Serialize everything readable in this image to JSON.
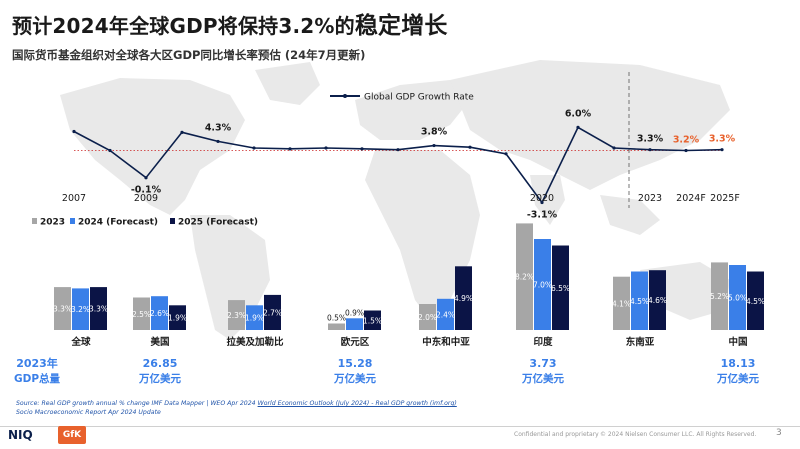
{
  "header": {
    "title_part1": "预计2024年全球GDP将保持3.2%的",
    "title_part2": "稳定增长",
    "subtitle": "国际货币基金组织对全球各大区GDP同比增长率预估 (24年7月更新)"
  },
  "chart_data": [
    {
      "type": "line",
      "legend": "Global GDP Growth Rate",
      "x_ticks": [
        "2007",
        "2009",
        "2020",
        "2023",
        "2024F",
        "2025F"
      ],
      "points": [
        {
          "x": 2007,
          "y": 5.5
        },
        {
          "x": 2008,
          "y": 3.2
        },
        {
          "x": 2009,
          "y": -0.1,
          "label": "-0.1%"
        },
        {
          "x": 2010,
          "y": 5.4
        },
        {
          "x": 2011,
          "y": 4.3,
          "label": "4.3%"
        },
        {
          "x": 2012,
          "y": 3.5
        },
        {
          "x": 2013,
          "y": 3.4
        },
        {
          "x": 2014,
          "y": 3.5
        },
        {
          "x": 2015,
          "y": 3.4
        },
        {
          "x": 2016,
          "y": 3.3
        },
        {
          "x": 2017,
          "y": 3.8,
          "label": "3.8%"
        },
        {
          "x": 2018,
          "y": 3.6
        },
        {
          "x": 2019,
          "y": 2.8
        },
        {
          "x": 2020,
          "y": -3.1,
          "label": "-3.1%"
        },
        {
          "x": 2021,
          "y": 6.0,
          "label": "6.0%"
        },
        {
          "x": 2022,
          "y": 3.5
        },
        {
          "x": 2023,
          "y": 3.3,
          "label": "3.3%"
        },
        {
          "x": 2024,
          "y": 3.2,
          "label": "3.2%",
          "forecast": true
        },
        {
          "x": 2025,
          "y": 3.3,
          "label": "3.3%",
          "forecast": true
        }
      ],
      "reference_line": 3.2,
      "colors": {
        "line": "#0b1f4b",
        "reference": "#cc2222",
        "forecast_label": "#e8612c"
      }
    },
    {
      "type": "bar",
      "series": [
        {
          "name": "2023",
          "color": "#a6a6a6"
        },
        {
          "name": "2024 (Forecast)",
          "color": "#3a7fe8"
        },
        {
          "name": "2025 (Forecast)",
          "color": "#0b1446"
        }
      ],
      "groups": [
        {
          "name": "全球",
          "values": [
            3.3,
            3.2,
            3.3
          ],
          "labels": [
            "3.3%",
            "3.2%",
            "3.3%"
          ]
        },
        {
          "name": "美国",
          "values": [
            2.5,
            2.6,
            1.9
          ],
          "labels": [
            "2.5%",
            "2.6%",
            "1.9%"
          ]
        },
        {
          "name": "拉美及加勒比",
          "values": [
            2.3,
            1.9,
            2.7
          ],
          "labels": [
            "2.3%",
            "1.9%",
            "2.7%"
          ]
        },
        {
          "name": "欧元区",
          "values": [
            0.5,
            0.9,
            1.5
          ],
          "labels": [
            "0.5%",
            "0.9%",
            "1.5%"
          ]
        },
        {
          "name": "中东和中亚",
          "values": [
            2.0,
            2.4,
            4.9
          ],
          "labels": [
            "2.0%",
            "2.4%",
            "4.9%"
          ]
        },
        {
          "name": "印度",
          "values": [
            8.2,
            7.0,
            6.5
          ],
          "labels": [
            "8.2%",
            "7.0%",
            "6.5%"
          ]
        },
        {
          "name": "东南亚",
          "values": [
            4.1,
            4.5,
            4.6
          ],
          "labels": [
            "4.1%",
            "4.5%",
            "4.6%"
          ]
        },
        {
          "name": "中国",
          "values": [
            5.2,
            5.0,
            4.5
          ],
          "labels": [
            "5.2%",
            "5.0%",
            "4.5%"
          ]
        }
      ],
      "gdp_totals": [
        {
          "value": "2023年",
          "unit": "GDP总量"
        },
        {
          "value": "26.85",
          "unit": "万亿美元"
        },
        {
          "value": "15.28",
          "unit": "万亿美元"
        },
        {
          "value": "3.73",
          "unit": "万亿美元"
        },
        {
          "value": "18.13",
          "unit": "万亿美元"
        }
      ],
      "gdp_color": "#3a7fe8"
    }
  ],
  "source": {
    "line1_a": "Source: Real GDP growth annual % change IMF Data Mapper | WEO Apr 2024 ",
    "line1_link1": "World Economic Outlook (July 2024) - Real GDP growth (imf.org)",
    "line2": "Socio Macroeconomic Report Apr 2024 Update"
  },
  "footer": {
    "logo": "NIQ",
    "partner": "GfK",
    "confidential": "Confidential and proprietary",
    "copyright": "© 2024 Nielsen Consumer LLC. All Rights Reserved.",
    "page": "3"
  }
}
